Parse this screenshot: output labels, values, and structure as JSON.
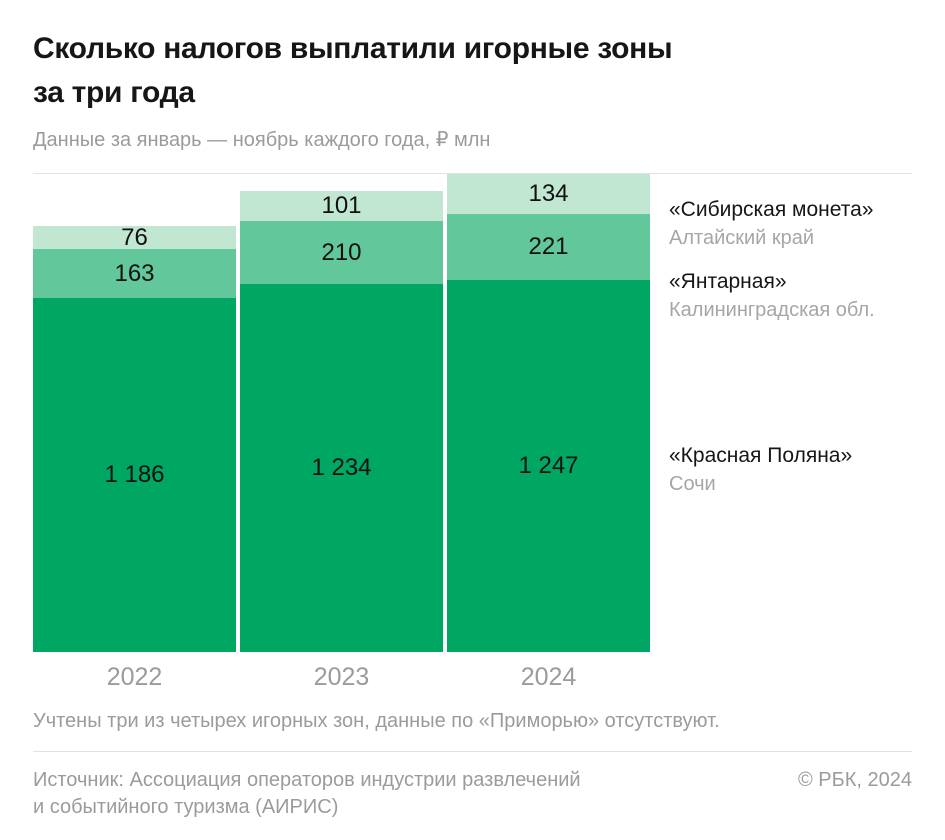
{
  "header": {
    "title_lines": [
      "Сколько налогов выплатили игорные зоны",
      "за три года"
    ],
    "subtitle": "Данные за январь — ноябрь каждого года, ₽ млн"
  },
  "chart_data": {
    "type": "bar",
    "stacked": true,
    "orientation": "vertical",
    "title": "Сколько налогов выплатили игорные зоны за три года",
    "subtitle": "Данные за январь — ноябрь каждого года, ₽ млн",
    "unit": "₽ млн",
    "categories": [
      "2022",
      "2023",
      "2024"
    ],
    "series": [
      {
        "name": "«Сибирская монета»",
        "region": "Алтайский край",
        "values": [
          76,
          101,
          134
        ],
        "labels": [
          "76",
          "101",
          "134"
        ],
        "color": "#c1e7d3"
      },
      {
        "name": "«Янтарная»",
        "region": "Калининградская обл.",
        "values": [
          163,
          210,
          221
        ],
        "labels": [
          "163",
          "210",
          "221"
        ],
        "color": "#62c79b"
      },
      {
        "name": "«Красная Поляна»",
        "region": "Сочи",
        "values": [
          1186,
          1234,
          1247
        ],
        "labels": [
          "1 186",
          "1 234",
          "1 247"
        ],
        "color": "#00a763"
      }
    ],
    "totals": [
      1425,
      1545,
      1602
    ],
    "ylim": [
      0,
      1602
    ],
    "grid": false,
    "legend_position": "right",
    "value_labels": "inside"
  },
  "footnote": "Учтены три из четырех игорных зон, данные по «Приморью» отсутствуют.",
  "footer": {
    "source_lines": [
      "Источник: Ассоциация операторов индустрии развлечений",
      "и событийного туризма (АИРИС)"
    ],
    "copyright": "© РБК, 2024"
  },
  "colors": {
    "series_light": "#c1e7d3",
    "series_medium": "#62c79b",
    "series_dark": "#00a763",
    "text_primary": "#161616",
    "text_secondary": "#9b9b9b",
    "divider": "#e3e3e3",
    "background": "#ffffff"
  }
}
